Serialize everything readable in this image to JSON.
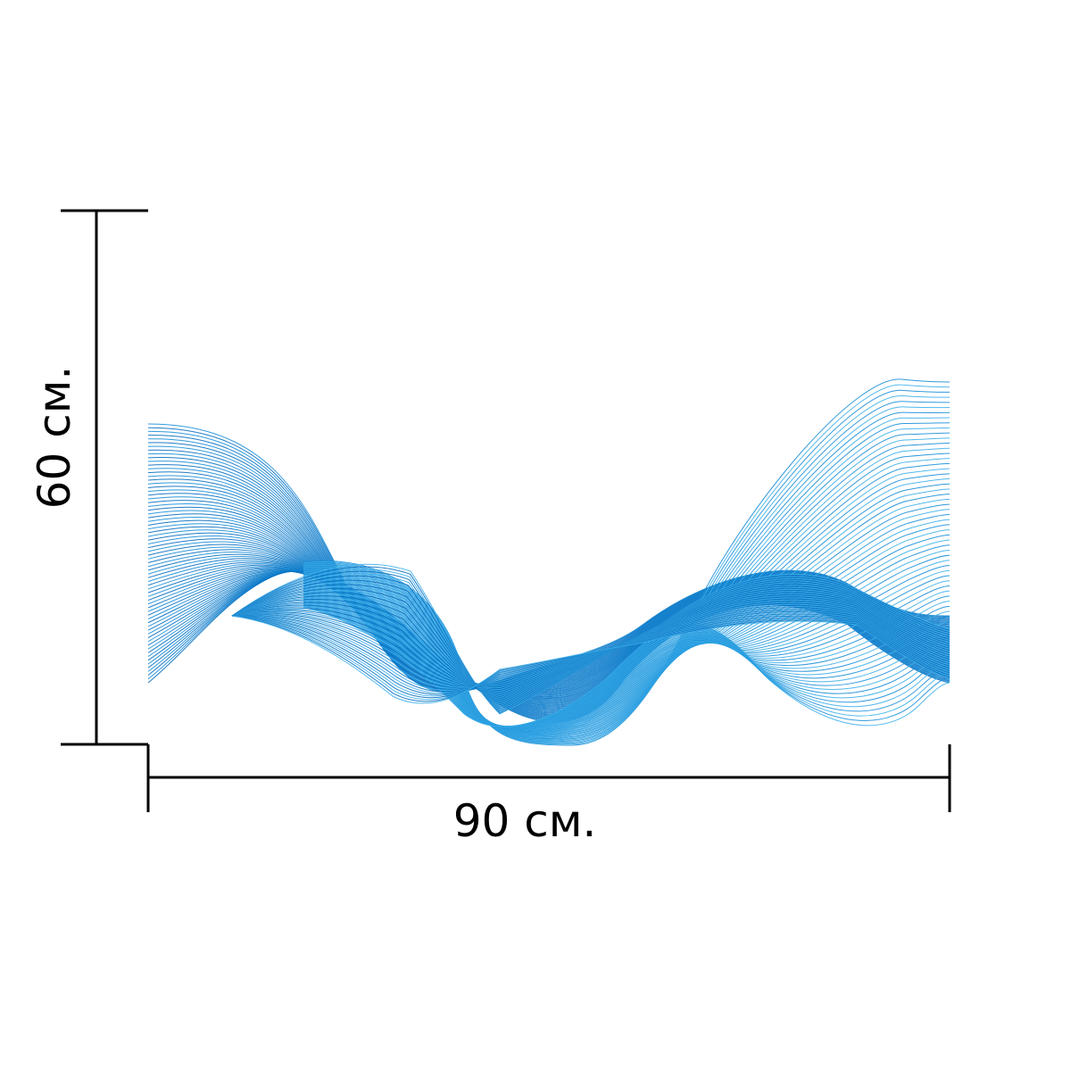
{
  "dimensions": {
    "width_label": "90 см.",
    "height_label": "60 см."
  },
  "colors": {
    "line_color": "#000000",
    "wave_dark": "#0a6fc0",
    "wave_mid": "#1b8fd8",
    "wave_light": "#3fb0ea"
  },
  "artwork": {
    "name": "blue-line-wave-artwork"
  }
}
